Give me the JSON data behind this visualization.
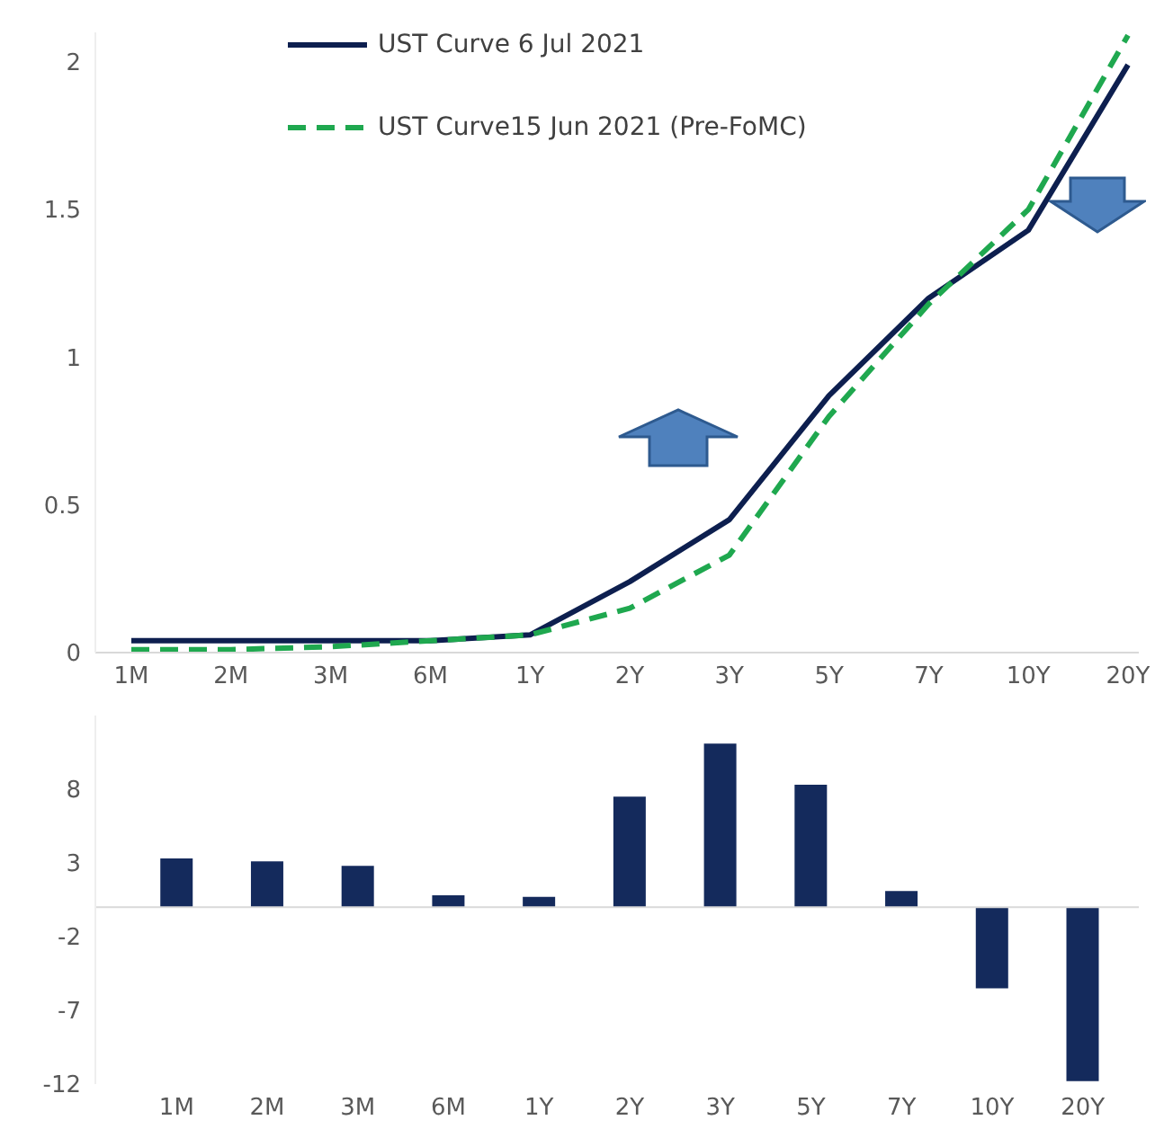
{
  "chart_data": [
    {
      "type": "line",
      "categories": [
        "1M",
        "2M",
        "3M",
        "6M",
        "1Y",
        "2Y",
        "3Y",
        "5Y",
        "7Y",
        "10Y",
        "20Y"
      ],
      "series": [
        {
          "name": "UST Curve 6 Jul 2021",
          "color": "#0d1f4f",
          "line_style": "solid",
          "values": [
            0.04,
            0.04,
            0.04,
            0.04,
            0.06,
            0.24,
            0.45,
            0.87,
            1.2,
            1.43,
            1.99
          ]
        },
        {
          "name": "UST Curve15 Jun 2021 (Pre-FoMC)",
          "color": "#1fa84f",
          "line_style": "dashed",
          "values": [
            0.01,
            0.01,
            0.02,
            0.04,
            0.06,
            0.15,
            0.33,
            0.8,
            1.18,
            1.5,
            2.09
          ]
        }
      ],
      "ylim": [
        0,
        2.1
      ],
      "yticks": [
        0,
        0.5,
        1,
        1.5,
        2
      ],
      "grid": false,
      "legend": "top",
      "marker": "none"
    },
    {
      "type": "bar",
      "categories": [
        "1M",
        "2M",
        "3M",
        "6M",
        "1Y",
        "2Y",
        "3Y",
        "5Y",
        "7Y",
        "10Y",
        "20Y"
      ],
      "values": [
        3.3,
        3.1,
        2.8,
        0.8,
        0.7,
        7.5,
        11.1,
        8.3,
        1.1,
        -5.5,
        -11.8
      ],
      "color": "#142a5c",
      "ylim": [
        -12,
        13
      ],
      "yticks": [
        -12,
        -7,
        -2,
        3,
        8
      ],
      "grid": false,
      "legend": false
    }
  ]
}
